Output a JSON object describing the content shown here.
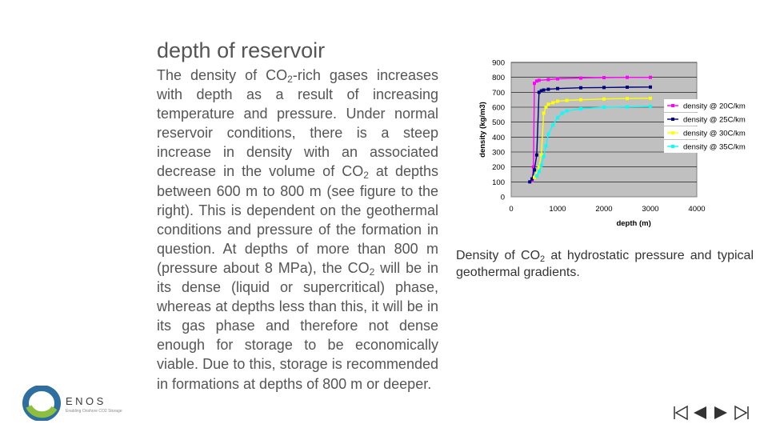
{
  "slide": {
    "title": "depth of reservoir",
    "body_parts": [
      {
        "t": "The density of CO"
      },
      {
        "sub": "2"
      },
      {
        "t": "-rich gases increases with depth as a result of increasing temperature and pressure. Under normal reservoir conditions, there is a steep increase in density with an associated decrease in the volume of CO"
      },
      {
        "sub": "2"
      },
      {
        "t": " at depths between 600 m to 800 m (see figure to the right). This is dependent on the geothermal conditions and pressure of the formation in question. At depths of more than 800 m (pressure about 8 MPa), the CO"
      },
      {
        "sub": "2"
      },
      {
        "t": " will be in its dense (liquid or supercritical) phase, whereas at depths less than this, it will be in its gas phase and therefore not dense enough for storage to be economically viable. Due to this, storage is recommended in formations at depths of 800 m or deeper."
      }
    ],
    "caption_parts": [
      {
        "t": "Density of CO"
      },
      {
        "sub": "2"
      },
      {
        "t": " at hydrostatic pressure and typical geothermal gradients."
      }
    ]
  },
  "logo": {
    "word": "ENOS",
    "tagline": "Enabling Onshore CO2 Storage",
    "colors": [
      "#2f6f9f",
      "#8cbf3f"
    ]
  },
  "nav": {
    "icons": [
      "first-icon",
      "prev-icon",
      "next-icon",
      "last-icon"
    ],
    "color": "#333333"
  },
  "chart_data": {
    "type": "line",
    "xlabel": "depth (m)",
    "ylabel": "density (kg/m3)",
    "xlim": [
      0,
      4000
    ],
    "ylim": [
      0,
      900
    ],
    "xticks": [
      0,
      1000,
      2000,
      3000,
      4000
    ],
    "yticks": [
      0,
      100,
      200,
      300,
      400,
      500,
      600,
      700,
      800,
      900
    ],
    "grid": true,
    "plot_background": "#c0c0c0",
    "legend_position": "right",
    "series": [
      {
        "name": "density @ 20C/km",
        "color": "#ff00ff",
        "x": [
          450,
          480,
          500,
          550,
          600,
          800,
          1000,
          1500,
          2000,
          2500,
          3000
        ],
        "y": [
          110,
          200,
          760,
          775,
          780,
          785,
          790,
          795,
          798,
          800,
          800
        ]
      },
      {
        "name": "density @ 25C/km",
        "color": "#000080",
        "x": [
          400,
          450,
          500,
          550,
          600,
          650,
          700,
          800,
          1000,
          1500,
          2000,
          2500,
          3000
        ],
        "y": [
          100,
          120,
          180,
          280,
          700,
          710,
          715,
          720,
          725,
          730,
          732,
          734,
          735
        ]
      },
      {
        "name": "density @ 30C/km",
        "color": "#ffff00",
        "x": [
          500,
          600,
          650,
          700,
          750,
          800,
          900,
          1000,
          1200,
          1500,
          2000,
          2500,
          3000
        ],
        "y": [
          130,
          200,
          280,
          560,
          600,
          620,
          630,
          640,
          645,
          650,
          655,
          658,
          660
        ]
      },
      {
        "name": "density @ 35C/km",
        "color": "#00ffff",
        "x": [
          550,
          600,
          650,
          700,
          750,
          800,
          900,
          1000,
          1100,
          1200,
          1500,
          2000,
          2500,
          3000
        ],
        "y": [
          140,
          170,
          210,
          270,
          340,
          420,
          480,
          530,
          560,
          575,
          590,
          600,
          602,
          605
        ]
      }
    ]
  }
}
